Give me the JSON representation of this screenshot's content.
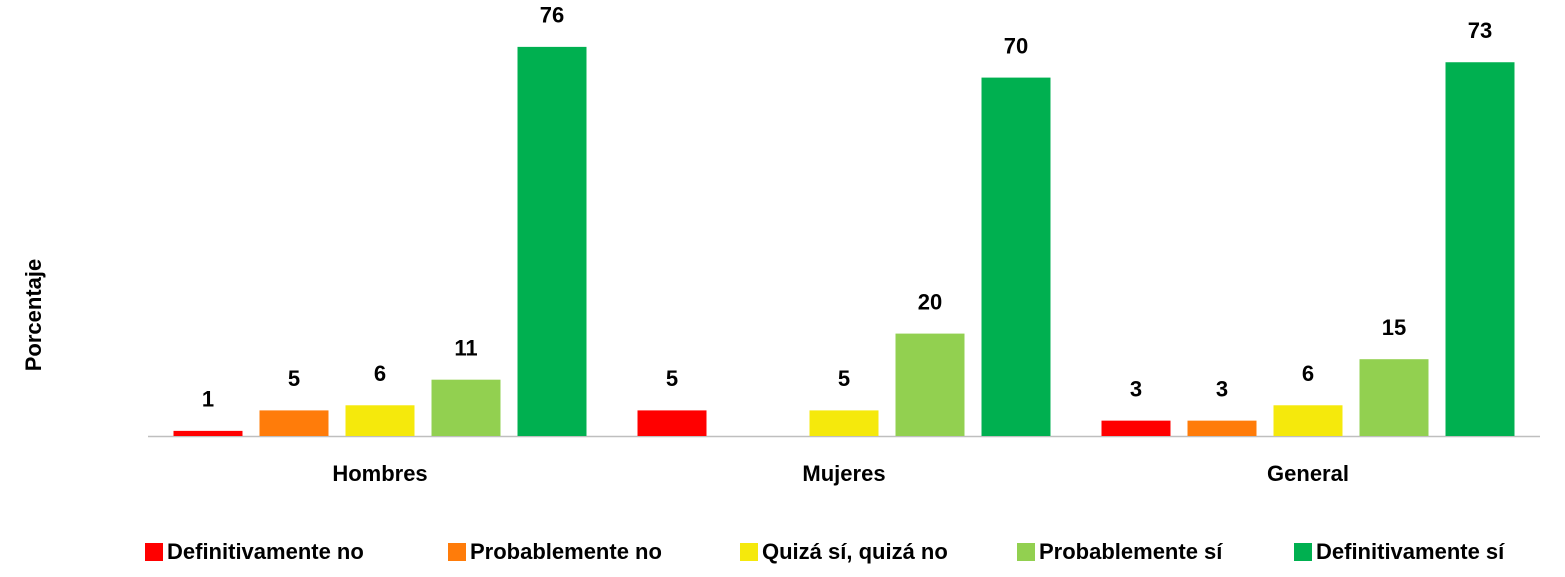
{
  "chart_data": {
    "type": "bar",
    "y_label": "Porcentaje",
    "categories": [
      "Hombres",
      "Mujeres",
      "General"
    ],
    "series": [
      {
        "name": "Definitivamente no",
        "color": "#ff0000",
        "values": [
          1,
          5,
          3
        ]
      },
      {
        "name": "Probablemente no",
        "color": "#ff7c0a",
        "values": [
          5,
          null,
          3
        ]
      },
      {
        "name": "Quizá sí, quizá no",
        "color": "#f5e90c",
        "values": [
          6,
          5,
          6
        ]
      },
      {
        "name": "Probablemente sí",
        "color": "#92d050",
        "values": [
          11,
          20,
          15
        ]
      },
      {
        "name": "Definitivamente sí",
        "color": "#00b050",
        "values": [
          76,
          70,
          73
        ]
      }
    ],
    "legend": "bottom"
  }
}
